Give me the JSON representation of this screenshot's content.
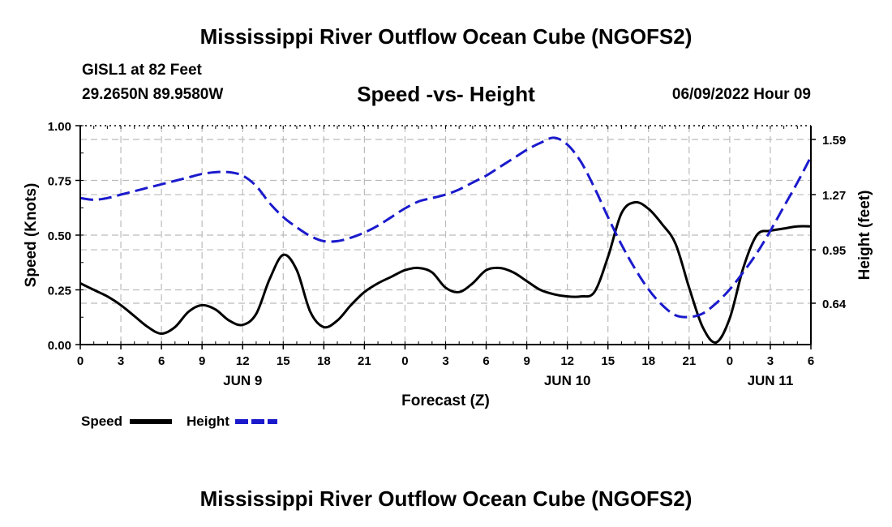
{
  "header": {
    "title": "Mississippi River Outflow Ocean Cube (NGOFS2)",
    "station": "GISL1 at 82 Feet",
    "coords": "29.2650N  89.9580W",
    "subtitle": "Speed -vs- Height",
    "datetime": "06/09/2022 Hour 09"
  },
  "footer": {
    "title": "Mississippi River Outflow Ocean Cube (NGOFS2)"
  },
  "legend": [
    {
      "label": "Speed",
      "color": "#000000",
      "style": "solid"
    },
    {
      "label": "Height",
      "color": "#1a1acc",
      "style": "dashed"
    }
  ],
  "chart_data": {
    "type": "line",
    "title": "Speed -vs- Height",
    "xlabel": "Forecast (Z)",
    "ylabel": "Speed (Knots)",
    "y2label": "Height (feet)",
    "xlim": [
      0,
      54
    ],
    "ylim": [
      0,
      1.0
    ],
    "y2lim": [
      0.4,
      1.67
    ],
    "x_ticks": [
      0,
      3,
      6,
      9,
      12,
      15,
      18,
      21,
      24,
      27,
      30,
      33,
      36,
      39,
      42,
      45,
      48,
      51,
      54
    ],
    "x_tick_labels": [
      "0",
      "3",
      "6",
      "9",
      "12",
      "15",
      "18",
      "21",
      "0",
      "3",
      "6",
      "9",
      "12",
      "15",
      "18",
      "21",
      "0",
      "3",
      "6"
    ],
    "date_labels": [
      {
        "x": 12,
        "label": "JUN 9"
      },
      {
        "x": 36,
        "label": "JUN 10"
      },
      {
        "x": 51,
        "label": "JUN 11"
      }
    ],
    "y_ticks": [
      0,
      0.25,
      0.5,
      0.75,
      1.0
    ],
    "y_tick_labels": [
      "0.00",
      "0.25",
      "0.50",
      "0.75",
      "1.00"
    ],
    "y2_ticks": [
      0.64,
      0.95,
      1.27,
      1.59
    ],
    "y2_tick_labels": [
      "0.64",
      "0.95",
      "1.27",
      "1.59"
    ],
    "grid": true,
    "series": [
      {
        "name": "Speed",
        "axis": "left",
        "color": "#000000",
        "x": [
          0,
          1,
          2,
          3,
          4,
          5,
          6,
          7,
          8,
          9,
          10,
          11,
          12,
          13,
          14,
          15,
          16,
          17,
          18,
          19,
          20,
          21,
          22,
          23,
          24,
          25,
          26,
          27,
          28,
          29,
          30,
          31,
          32,
          33,
          34,
          35,
          36,
          37,
          38,
          39,
          40,
          41,
          42,
          43,
          44,
          45,
          46,
          47,
          48,
          49,
          50,
          51,
          52,
          53,
          54
        ],
        "values": [
          0.28,
          0.25,
          0.22,
          0.18,
          0.13,
          0.08,
          0.05,
          0.08,
          0.15,
          0.18,
          0.16,
          0.11,
          0.09,
          0.14,
          0.3,
          0.41,
          0.34,
          0.15,
          0.08,
          0.11,
          0.18,
          0.24,
          0.28,
          0.31,
          0.34,
          0.35,
          0.33,
          0.26,
          0.24,
          0.28,
          0.34,
          0.35,
          0.33,
          0.29,
          0.25,
          0.23,
          0.22,
          0.22,
          0.24,
          0.4,
          0.6,
          0.65,
          0.62,
          0.55,
          0.46,
          0.26,
          0.08,
          0.01,
          0.12,
          0.35,
          0.5,
          0.52,
          0.53,
          0.54,
          0.54
        ]
      },
      {
        "name": "Height",
        "axis": "right",
        "color": "#1a1acc",
        "x": [
          0,
          1,
          2,
          3,
          4,
          5,
          6,
          7,
          8,
          9,
          10,
          11,
          12,
          13,
          14,
          15,
          16,
          17,
          18,
          19,
          20,
          21,
          22,
          23,
          24,
          25,
          26,
          27,
          28,
          29,
          30,
          31,
          32,
          33,
          34,
          35,
          36,
          37,
          38,
          39,
          40,
          41,
          42,
          43,
          44,
          45,
          46,
          47,
          48,
          49,
          50,
          51,
          52,
          53,
          54
        ],
        "values": [
          1.25,
          1.24,
          1.25,
          1.27,
          1.29,
          1.31,
          1.33,
          1.35,
          1.37,
          1.39,
          1.4,
          1.4,
          1.38,
          1.32,
          1.22,
          1.14,
          1.08,
          1.03,
          1.0,
          1.0,
          1.02,
          1.05,
          1.09,
          1.14,
          1.19,
          1.23,
          1.25,
          1.27,
          1.3,
          1.34,
          1.38,
          1.43,
          1.48,
          1.53,
          1.57,
          1.6,
          1.56,
          1.46,
          1.31,
          1.14,
          0.98,
          0.84,
          0.72,
          0.63,
          0.57,
          0.56,
          0.58,
          0.64,
          0.72,
          0.82,
          0.93,
          1.06,
          1.2,
          1.34,
          1.49
        ]
      }
    ]
  }
}
